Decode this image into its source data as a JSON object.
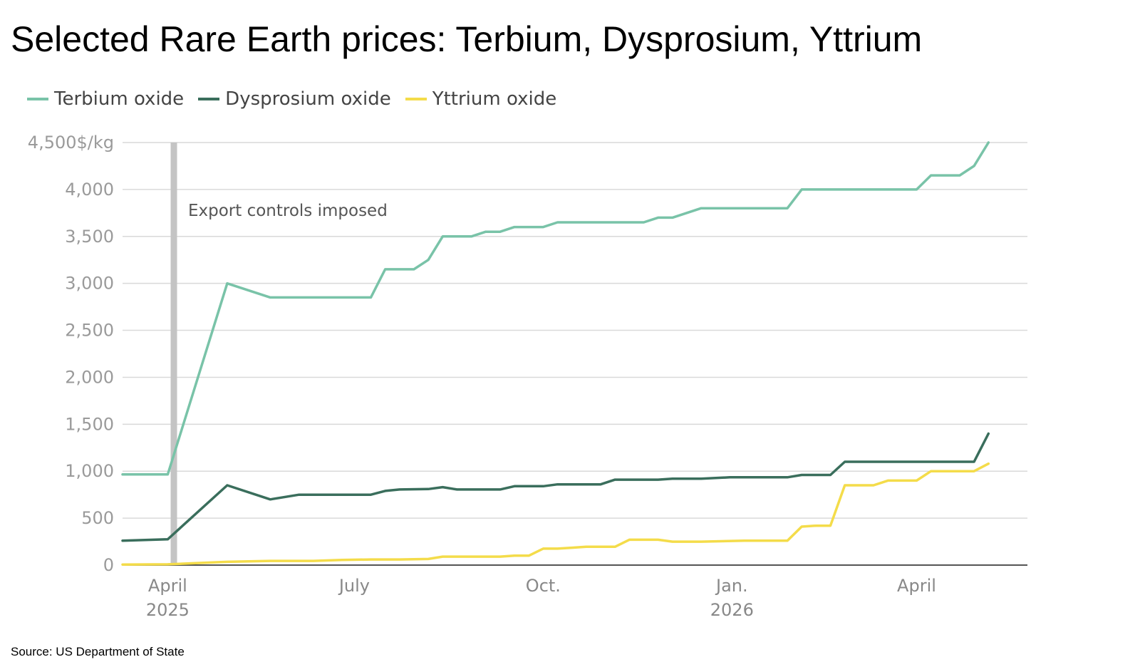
{
  "title": "Selected Rare Earth prices: Terbium, Dysprosium, Yttrium",
  "source": "Source: US Department of State",
  "chart_data": {
    "type": "line",
    "y_unit": "$/kg",
    "ylim": [
      0,
      4500
    ],
    "yticks": [
      0,
      500,
      1000,
      1500,
      2000,
      2500,
      3000,
      3500,
      4000,
      4500
    ],
    "ytick_labels": [
      "0",
      "500",
      "1,000",
      "1,500",
      "2,000",
      "2,500",
      "3,000",
      "3,500",
      "4,000",
      "4,500$/kg"
    ],
    "xlim": [
      "2025-03-10",
      "2026-05-25"
    ],
    "xticks": [
      {
        "date": "2025-04-01",
        "line1": "April",
        "line2": "2025"
      },
      {
        "date": "2025-07-01",
        "line1": "July",
        "line2": ""
      },
      {
        "date": "2025-10-01",
        "line1": "Oct.",
        "line2": ""
      },
      {
        "date": "2026-01-01",
        "line1": "Jan.",
        "line2": "2026"
      },
      {
        "date": "2026-04-01",
        "line1": "April",
        "line2": ""
      }
    ],
    "grid": true,
    "legend_position": "top-left",
    "annotation": {
      "date": "2025-04-04",
      "text": "Export controls imposed"
    },
    "series": [
      {
        "name": "Terbium oxide",
        "color": "#79c3a8",
        "points": [
          [
            "2025-03-10",
            965
          ],
          [
            "2025-04-01",
            965
          ],
          [
            "2025-04-30",
            3000
          ],
          [
            "2025-05-21",
            2850
          ],
          [
            "2025-06-11",
            2850
          ],
          [
            "2025-07-02",
            2850
          ],
          [
            "2025-07-09",
            2850
          ],
          [
            "2025-07-16",
            3150
          ],
          [
            "2025-07-30",
            3150
          ],
          [
            "2025-08-06",
            3250
          ],
          [
            "2025-08-13",
            3500
          ],
          [
            "2025-08-27",
            3500
          ],
          [
            "2025-09-03",
            3550
          ],
          [
            "2025-09-10",
            3550
          ],
          [
            "2025-09-17",
            3600
          ],
          [
            "2025-10-01",
            3600
          ],
          [
            "2025-10-08",
            3650
          ],
          [
            "2025-11-19",
            3650
          ],
          [
            "2025-11-26",
            3700
          ],
          [
            "2025-12-03",
            3700
          ],
          [
            "2025-12-17",
            3800
          ],
          [
            "2026-01-28",
            3800
          ],
          [
            "2026-02-04",
            4000
          ],
          [
            "2026-03-25",
            4000
          ],
          [
            "2026-04-01",
            4000
          ],
          [
            "2026-04-08",
            4150
          ],
          [
            "2026-04-22",
            4150
          ],
          [
            "2026-04-29",
            4250
          ],
          [
            "2026-05-06",
            4500
          ]
        ]
      },
      {
        "name": "Dysprosium oxide",
        "color": "#3a6e5c",
        "points": [
          [
            "2025-03-10",
            260
          ],
          [
            "2025-04-01",
            275
          ],
          [
            "2025-04-30",
            850
          ],
          [
            "2025-05-21",
            700
          ],
          [
            "2025-06-04",
            750
          ],
          [
            "2025-07-09",
            750
          ],
          [
            "2025-07-16",
            790
          ],
          [
            "2025-07-23",
            805
          ],
          [
            "2025-08-06",
            810
          ],
          [
            "2025-08-13",
            830
          ],
          [
            "2025-08-20",
            805
          ],
          [
            "2025-09-10",
            805
          ],
          [
            "2025-09-17",
            840
          ],
          [
            "2025-10-01",
            840
          ],
          [
            "2025-10-08",
            860
          ],
          [
            "2025-10-29",
            860
          ],
          [
            "2025-11-05",
            910
          ],
          [
            "2025-11-26",
            910
          ],
          [
            "2025-12-03",
            920
          ],
          [
            "2025-12-17",
            920
          ],
          [
            "2025-12-31",
            935
          ],
          [
            "2026-01-28",
            935
          ],
          [
            "2026-02-04",
            960
          ],
          [
            "2026-02-18",
            960
          ],
          [
            "2026-02-25",
            1100
          ],
          [
            "2026-04-29",
            1100
          ],
          [
            "2026-05-06",
            1400
          ]
        ]
      },
      {
        "name": "Yttrium oxide",
        "color": "#f4dc4a",
        "points": [
          [
            "2025-03-10",
            5
          ],
          [
            "2025-04-01",
            8
          ],
          [
            "2025-04-30",
            35
          ],
          [
            "2025-05-21",
            45
          ],
          [
            "2025-06-11",
            45
          ],
          [
            "2025-06-25",
            55
          ],
          [
            "2025-07-09",
            60
          ],
          [
            "2025-07-23",
            60
          ],
          [
            "2025-08-06",
            65
          ],
          [
            "2025-08-13",
            90
          ],
          [
            "2025-09-10",
            90
          ],
          [
            "2025-09-17",
            100
          ],
          [
            "2025-09-24",
            100
          ],
          [
            "2025-10-01",
            175
          ],
          [
            "2025-10-08",
            175
          ],
          [
            "2025-10-15",
            185
          ],
          [
            "2025-10-22",
            195
          ],
          [
            "2025-11-05",
            195
          ],
          [
            "2025-11-12",
            270
          ],
          [
            "2025-11-26",
            270
          ],
          [
            "2025-12-03",
            250
          ],
          [
            "2025-12-17",
            250
          ],
          [
            "2026-01-07",
            260
          ],
          [
            "2026-01-28",
            260
          ],
          [
            "2026-02-04",
            410
          ],
          [
            "2026-02-11",
            420
          ],
          [
            "2026-02-18",
            420
          ],
          [
            "2026-02-25",
            850
          ],
          [
            "2026-03-11",
            850
          ],
          [
            "2026-03-18",
            900
          ],
          [
            "2026-04-01",
            900
          ],
          [
            "2026-04-08",
            1000
          ],
          [
            "2026-04-29",
            1000
          ],
          [
            "2026-05-06",
            1080
          ]
        ]
      }
    ]
  }
}
